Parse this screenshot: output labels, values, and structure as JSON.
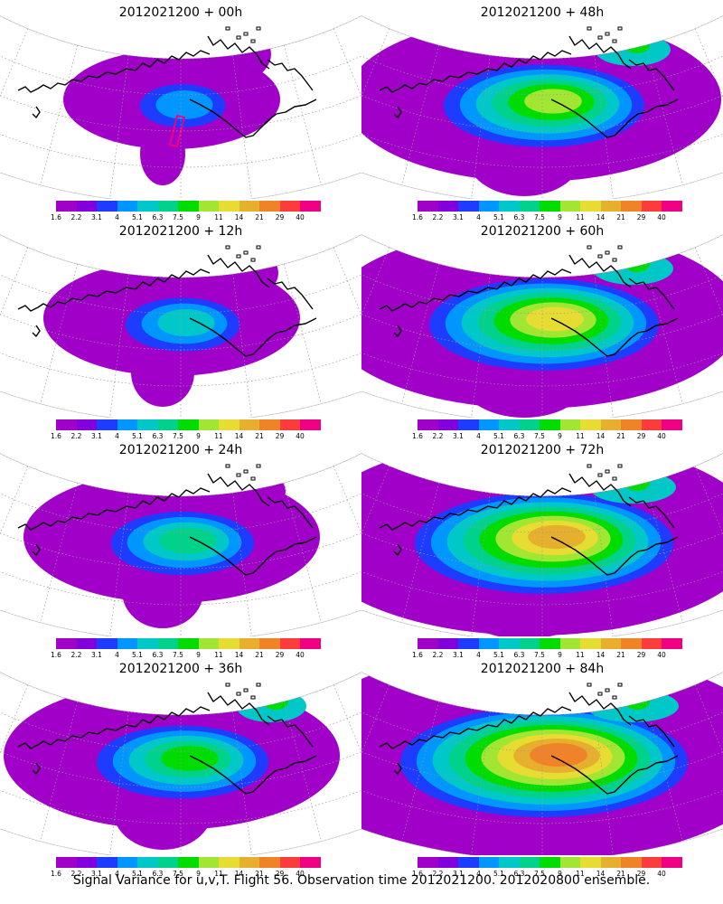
{
  "caption": "Signal Variance for u,v,T. Flight 56. Observation time 2012021200. 2012020800 ensemble.",
  "colorbar": {
    "labels": [
      "1.6",
      "2.2",
      "3.1",
      "4",
      "5.1",
      "6.3",
      "7.5",
      "9",
      "11",
      "14",
      "21",
      "29",
      "40"
    ],
    "colors": [
      "#a000c8",
      "#8200dc",
      "#1e3cff",
      "#0096ff",
      "#00c8c8",
      "#00d28c",
      "#00dc00",
      "#a0e632",
      "#e6dc32",
      "#e6af2d",
      "#f08228",
      "#fa3c3c",
      "#f00082"
    ]
  },
  "panels": [
    {
      "title": "2012021200 + 00h"
    },
    {
      "title": "2012021200 + 48h"
    },
    {
      "title": "2012021200 + 12h"
    },
    {
      "title": "2012021200 + 60h"
    },
    {
      "title": "2012021200 + 24h"
    },
    {
      "title": "2012021200 + 72h"
    },
    {
      "title": "2012021200 + 36h"
    },
    {
      "title": "2012021200 + 84h"
    }
  ]
}
